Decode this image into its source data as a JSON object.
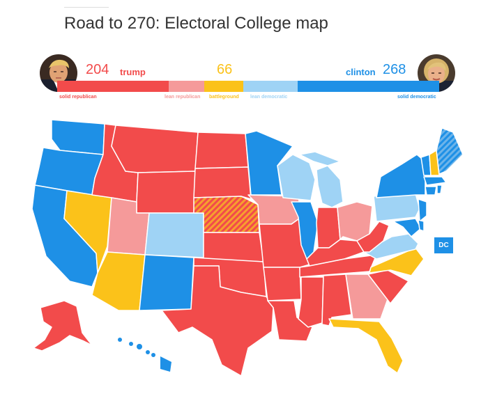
{
  "page": {
    "title": "Road to 270: Electoral College map"
  },
  "scoreboard": {
    "trump": {
      "count": "204",
      "name": "trump"
    },
    "battleground": {
      "count": "66"
    },
    "clinton": {
      "count": "268",
      "name": "clinton"
    },
    "legend": [
      {
        "key": "solid_republican",
        "label": "solid republican",
        "color": "#f24b4b"
      },
      {
        "key": "lean_republican",
        "label": "lean republican",
        "color": "#f59a9a"
      },
      {
        "key": "battleground",
        "label": "battleground",
        "color": "#fbc21a"
      },
      {
        "key": "lean_democratic",
        "label": "lean democratic",
        "color": "#9fd3f5"
      },
      {
        "key": "solid_democratic",
        "label": "solid democratic",
        "color": "#1e90e6"
      }
    ]
  },
  "map": {
    "dc_label": "DC"
  },
  "colors": {
    "solid_republican": "#f24b4b",
    "lean_republican": "#f59a9a",
    "battleground": "#fbc21a",
    "lean_democratic": "#9fd3f5",
    "solid_democratic": "#1e90e6",
    "split_hatch": "#f6a12e"
  }
}
